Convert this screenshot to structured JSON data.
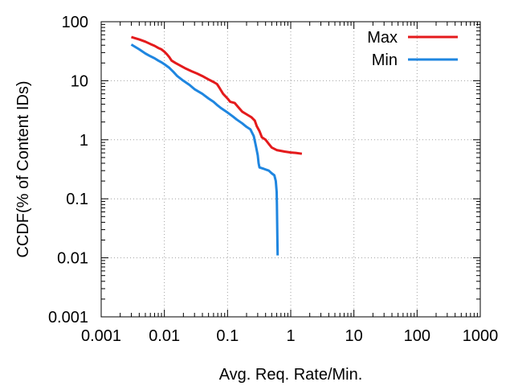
{
  "chart_data": {
    "type": "line",
    "title": "",
    "xlabel": "Avg. Req. Rate/Min.",
    "ylabel": "CCDF(% of Content IDs)",
    "xscale": "log",
    "yscale": "log",
    "xlim": [
      0.001,
      1000
    ],
    "ylim": [
      0.001,
      100
    ],
    "grid": true,
    "legend_position": "top-right",
    "x_ticks": [
      {
        "value": 0.001,
        "label": "0.001"
      },
      {
        "value": 0.01,
        "label": "0.01"
      },
      {
        "value": 0.1,
        "label": "0.1"
      },
      {
        "value": 1,
        "label": "1"
      },
      {
        "value": 10,
        "label": "10"
      },
      {
        "value": 100,
        "label": "100"
      },
      {
        "value": 1000,
        "label": "1000"
      }
    ],
    "y_ticks": [
      {
        "value": 0.001,
        "label": "0.001"
      },
      {
        "value": 0.01,
        "label": "0.01"
      },
      {
        "value": 0.1,
        "label": "0.1"
      },
      {
        "value": 1,
        "label": "1"
      },
      {
        "value": 10,
        "label": "10"
      },
      {
        "value": 100,
        "label": "100"
      }
    ],
    "series": [
      {
        "name": "Max",
        "color": "#e41a1c",
        "points": [
          [
            0.003,
            55
          ],
          [
            0.004,
            50
          ],
          [
            0.005,
            46
          ],
          [
            0.006,
            42
          ],
          [
            0.007,
            39
          ],
          [
            0.008,
            36
          ],
          [
            0.009,
            34
          ],
          [
            0.01,
            31
          ],
          [
            0.011,
            28
          ],
          [
            0.012,
            25
          ],
          [
            0.013,
            22
          ],
          [
            0.015,
            20
          ],
          [
            0.018,
            18
          ],
          [
            0.022,
            16
          ],
          [
            0.027,
            14.5
          ],
          [
            0.033,
            13.2
          ],
          [
            0.04,
            12
          ],
          [
            0.05,
            10.5
          ],
          [
            0.06,
            9.5
          ],
          [
            0.068,
            8.8
          ],
          [
            0.075,
            7.5
          ],
          [
            0.085,
            6
          ],
          [
            0.1,
            5
          ],
          [
            0.11,
            4.4
          ],
          [
            0.13,
            4.2
          ],
          [
            0.15,
            3.5
          ],
          [
            0.17,
            3.0
          ],
          [
            0.2,
            2.7
          ],
          [
            0.24,
            2.4
          ],
          [
            0.27,
            2.1
          ],
          [
            0.29,
            1.7
          ],
          [
            0.32,
            1.4
          ],
          [
            0.35,
            1.1
          ],
          [
            0.4,
            1.0
          ],
          [
            0.45,
            0.85
          ],
          [
            0.5,
            0.74
          ],
          [
            0.6,
            0.67
          ],
          [
            0.8,
            0.63
          ],
          [
            1.0,
            0.61
          ],
          [
            1.2,
            0.6
          ],
          [
            1.5,
            0.58
          ]
        ]
      },
      {
        "name": "Min",
        "color": "#1f86e0",
        "points": [
          [
            0.003,
            41
          ],
          [
            0.004,
            34
          ],
          [
            0.005,
            29
          ],
          [
            0.006,
            26
          ],
          [
            0.007,
            24
          ],
          [
            0.008,
            22
          ],
          [
            0.009,
            20.5
          ],
          [
            0.01,
            19
          ],
          [
            0.012,
            16.5
          ],
          [
            0.014,
            14
          ],
          [
            0.016,
            12
          ],
          [
            0.02,
            10
          ],
          [
            0.025,
            8.5
          ],
          [
            0.03,
            7.2
          ],
          [
            0.04,
            6
          ],
          [
            0.05,
            5
          ],
          [
            0.06,
            4.4
          ],
          [
            0.07,
            3.8
          ],
          [
            0.08,
            3.4
          ],
          [
            0.1,
            2.9
          ],
          [
            0.12,
            2.5
          ],
          [
            0.14,
            2.2
          ],
          [
            0.17,
            1.9
          ],
          [
            0.2,
            1.65
          ],
          [
            0.23,
            1.5
          ],
          [
            0.26,
            1.15
          ],
          [
            0.28,
            0.8
          ],
          [
            0.3,
            0.55
          ],
          [
            0.31,
            0.4
          ],
          [
            0.32,
            0.34
          ],
          [
            0.38,
            0.32
          ],
          [
            0.45,
            0.3
          ],
          [
            0.5,
            0.27
          ],
          [
            0.55,
            0.25
          ],
          [
            0.58,
            0.2
          ],
          [
            0.6,
            0.13
          ],
          [
            0.605,
            0.08
          ],
          [
            0.61,
            0.04
          ],
          [
            0.615,
            0.02
          ],
          [
            0.62,
            0.011
          ]
        ]
      }
    ]
  }
}
